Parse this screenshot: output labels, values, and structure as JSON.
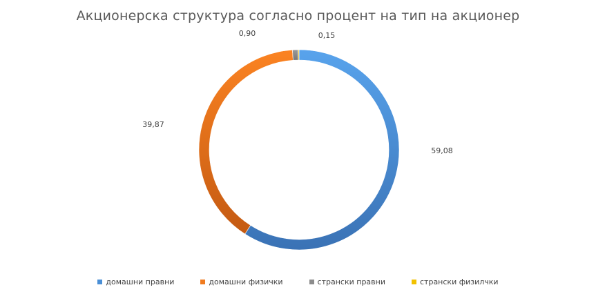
{
  "chart_data": {
    "type": "pie",
    "title": "Акционерска структура согласно процент на тип на акционер",
    "categories": [
      "домашни правни",
      "домашни физички",
      "странски правни",
      "странски физилчки"
    ],
    "values": [
      59.08,
      39.87,
      0.9,
      0.15
    ],
    "value_labels": [
      "59,08",
      "39,87",
      "0,90",
      "0,15"
    ],
    "colors": [
      "#4a8fd6",
      "#f07b1f",
      "#8c8c8c",
      "#f2c200"
    ],
    "donut": true,
    "legend_position": "bottom"
  }
}
